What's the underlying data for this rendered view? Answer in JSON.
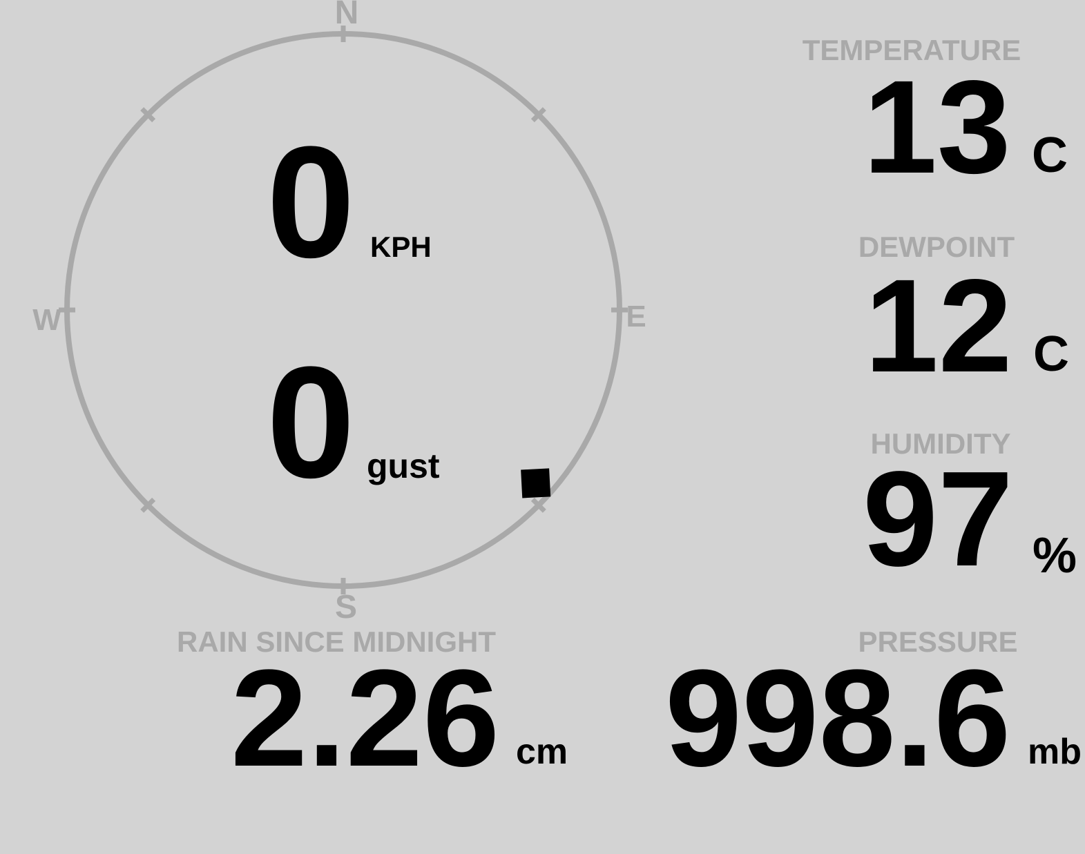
{
  "wind": {
    "speed": "0",
    "speed_unit": "KPH",
    "gust": "0",
    "gust_unit": "gust",
    "direction_degrees": 132,
    "compass": {
      "north": "N",
      "south": "S",
      "east": "E",
      "west": "W"
    }
  },
  "readings": [
    {
      "id": "temperature",
      "label": "TEMPERATURE",
      "value": "13",
      "unit": "C"
    },
    {
      "id": "dewpoint",
      "label": "DEWPOINT",
      "value": "12",
      "unit": "C"
    },
    {
      "id": "humidity",
      "label": "HUMIDITY",
      "value": "97",
      "unit": "%"
    },
    {
      "id": "rain",
      "label": "RAIN SINCE MIDNIGHT",
      "value": "2.26",
      "unit": "cm"
    },
    {
      "id": "pressure",
      "label": "PRESSURE",
      "value": "998.6",
      "unit": "mb"
    }
  ],
  "colors": {
    "background": "#d3d3d3",
    "muted_gray": "#a9a9a9",
    "value_black": "#000000"
  }
}
